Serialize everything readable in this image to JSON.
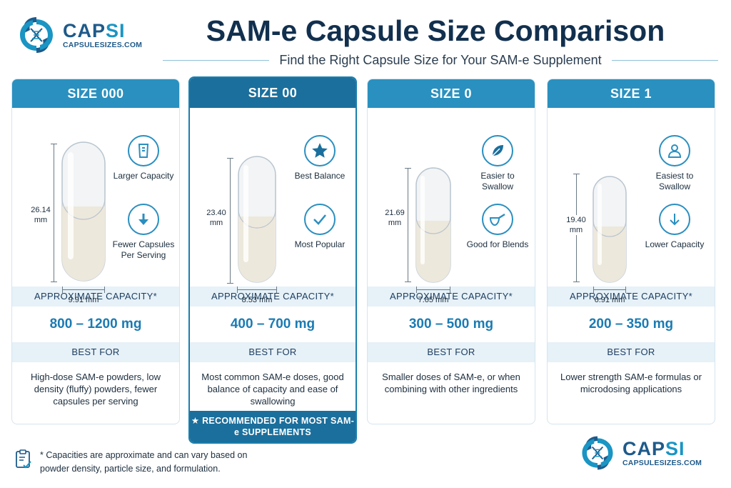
{
  "brand": {
    "name_a": "CAP",
    "name_b": "SI",
    "site": "CAPSULESIZES.COM"
  },
  "header": {
    "title": "SAM-e Capsule Size Comparison",
    "subtitle": "Find the Right Capsule Size for Your SAM-e Supplement"
  },
  "cards": [
    {
      "size": "SIZE 000",
      "length": "26.14 mm",
      "diameter": "9.91 mm",
      "features": [
        {
          "icon": "beaker-icon",
          "label": "Larger Capacity"
        },
        {
          "icon": "arrow-down-icon",
          "label": "Fewer Capsules Per Serving"
        }
      ],
      "capacity_label": "APPROXIMATE CAPACITY*",
      "capacity": "800 – 1200 mg",
      "best_label": "BEST FOR",
      "best_for": "High-dose SAM-e powders, low density (fluffy) powders, fewer capsules per serving"
    },
    {
      "size": "SIZE 00",
      "length": "23.40 mm",
      "diameter": "8.53 mm",
      "features": [
        {
          "icon": "star-icon",
          "label": "Best Balance"
        },
        {
          "icon": "check-icon",
          "label": "Most Popular"
        }
      ],
      "capacity_label": "APPROXIMATE CAPACITY*",
      "capacity": "400 – 700 mg",
      "best_label": "BEST FOR",
      "best_for": "Most common SAM-e doses, good balance of capacity and ease of swallowing",
      "recommend": "★ RECOMMENDED FOR MOST SAM-e SUPPLEMENTS"
    },
    {
      "size": "SIZE 0",
      "length": "21.69 mm",
      "diameter": "7.65 mm",
      "features": [
        {
          "icon": "leaf-icon",
          "label": "Easier to Swallow"
        },
        {
          "icon": "scoop-icon",
          "label": "Good for Blends"
        }
      ],
      "capacity_label": "APPROXIMATE CAPACITY*",
      "capacity": "300 – 500 mg",
      "best_label": "BEST FOR",
      "best_for": "Smaller doses of SAM-e, or when combining with other ingredients"
    },
    {
      "size": "SIZE 1",
      "length": "19.40 mm",
      "diameter": "6.91 mm",
      "features": [
        {
          "icon": "person-icon",
          "label": "Easiest to Swallow"
        },
        {
          "icon": "arrow-down-icon",
          "label": "Lower Capacity"
        }
      ],
      "capacity_label": "APPROXIMATE CAPACITY*",
      "capacity": "200 – 350 mg",
      "best_label": "BEST FOR",
      "best_for": "Lower strength SAM-e formulas or microdosing applications"
    }
  ],
  "footnote": "* Capacities are approximate and can vary based on powder density, particle size, and formulation.",
  "colors": {
    "primary": "#2a90bf",
    "dark": "#1b6f9c",
    "band": "#e6f1f8",
    "value": "#1a7bb3"
  }
}
